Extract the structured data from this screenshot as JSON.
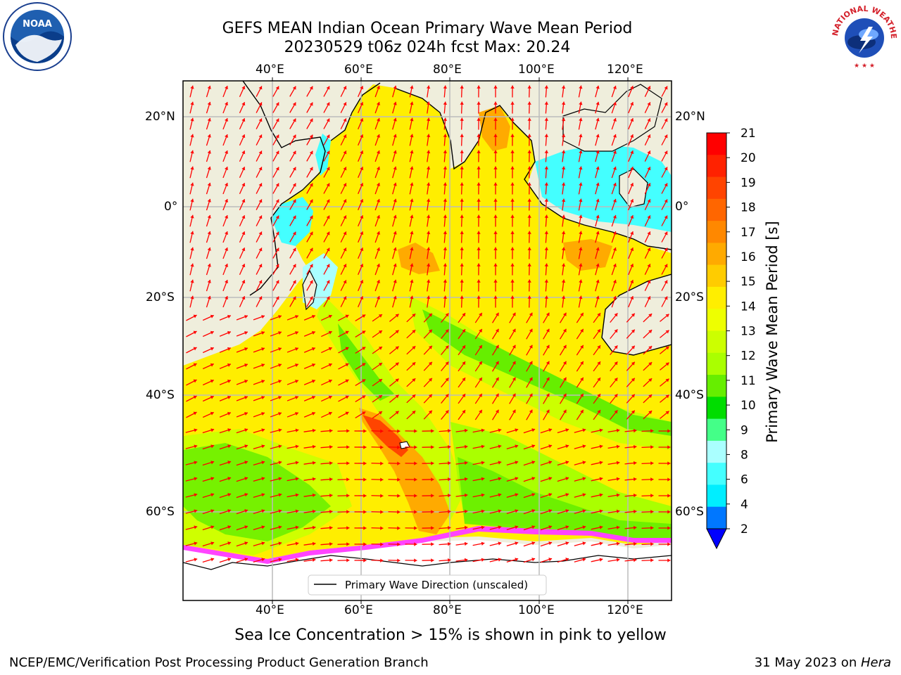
{
  "title": {
    "line1": "GEFS MEAN Indian Ocean Primary Wave Mean Period",
    "line2": "20230529 t06z 024h fcst   Max: 20.24"
  },
  "axes": {
    "lon_ticks": [
      "40°E",
      "60°E",
      "80°E",
      "100°E",
      "120°E"
    ],
    "lat_ticks": [
      "20°N",
      "0°",
      "20°S",
      "40°S",
      "60°S"
    ]
  },
  "colorbar": {
    "label": "Primary Wave Mean Period [s]",
    "ticks": [
      "21",
      "20",
      "19",
      "18",
      "17",
      "16",
      "15",
      "14",
      "13",
      "12",
      "11",
      "10",
      "9",
      "8",
      "6",
      "4",
      "2"
    ],
    "colors": [
      "#ff0000",
      "#ff2200",
      "#ff4400",
      "#ff6600",
      "#ff8800",
      "#ffaa00",
      "#ffcc00",
      "#ffee00",
      "#eeff00",
      "#ccff00",
      "#aaff00",
      "#66ee00",
      "#00dd00",
      "#44ff88",
      "#aaffff",
      "#44ffff",
      "#00eeff",
      "#0077ff"
    ],
    "under_color": "#0000ff"
  },
  "legend": {
    "label": "Primary Wave Direction (unscaled)"
  },
  "caption": "Sea Ice Concentration > 15% is shown in pink to yellow",
  "footer": {
    "left": "NCEP/EMC/Verification Post Processing Product Generation Branch",
    "right_date": "31 May 2023 on ",
    "right_host": "Hera"
  },
  "logos": {
    "left": "NOAA",
    "right": "NATIONAL WEATHER SERVICE"
  },
  "colors": {
    "land": "#efeedc",
    "arrow": "#ff0000",
    "grid": "#bbbbbb"
  }
}
